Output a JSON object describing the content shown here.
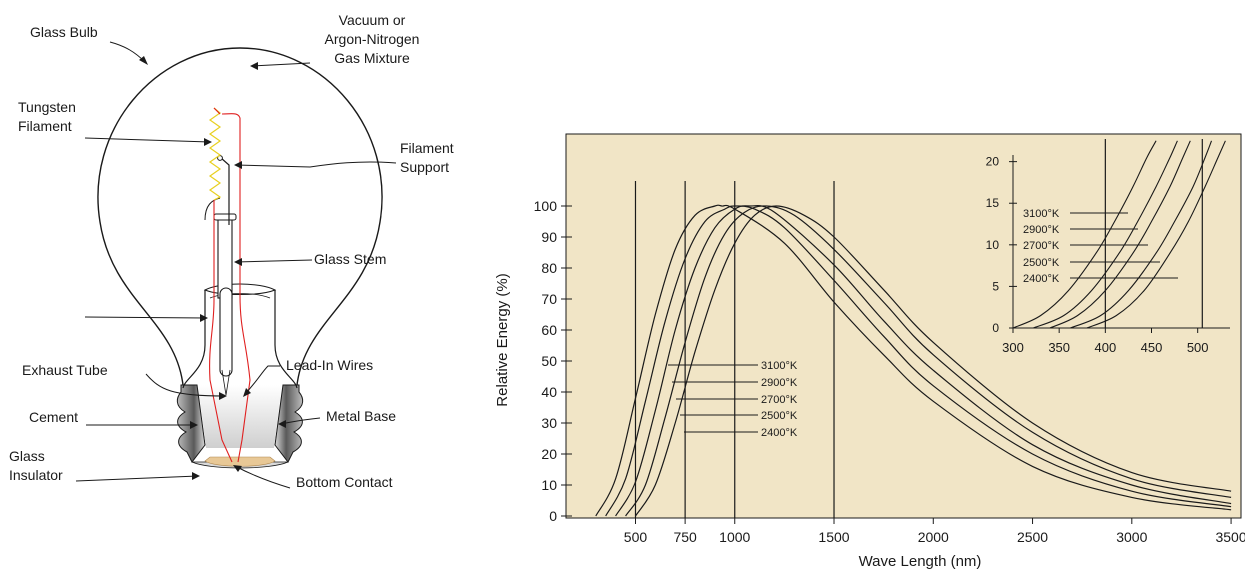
{
  "diagram": {
    "labels": {
      "glass_bulb": "Glass Bulb",
      "gas_line1": "Vacuum or",
      "gas_line2": "Argon-Nitrogen",
      "gas_line3": "Gas Mixture",
      "filament_line1": "Tungsten",
      "filament_line2": "Filament",
      "support_line1": "Filament",
      "support_line2": "Support",
      "glass_stem": "Glass Stem",
      "lead_in": "Lead-In Wires",
      "exhaust_tube": "Exhaust Tube",
      "cement": "Cement",
      "metal_base": "Metal Base",
      "insulator_line1": "Glass",
      "insulator_line2": "Insulator",
      "bottom_contact": "Bottom Contact"
    },
    "colors": {
      "lead_wire": "#e02020",
      "filament": "#e8d020",
      "contact": "#e8c896"
    }
  },
  "chart_data": [
    {
      "type": "line",
      "xlabel": "Wave Length (nm)",
      "ylabel": "Relative Energy (%)",
      "xlim": [
        150,
        3550
      ],
      "ylim": [
        0,
        116
      ],
      "x_ticks": [
        500,
        750,
        1000,
        1500,
        2000,
        2500,
        3000,
        3500
      ],
      "y_ticks": [
        0,
        10,
        20,
        30,
        40,
        50,
        60,
        70,
        80,
        90,
        100
      ],
      "vertical_lines": [
        500,
        750,
        1000,
        1500
      ],
      "background": "#f1e5c6",
      "series": [
        {
          "name": "3100°K",
          "peak": 935,
          "x": [
            300,
            400,
            500,
            600,
            700,
            800,
            900,
            935,
            1000,
            1250,
            1500,
            1750,
            2000,
            2500,
            3000,
            3500
          ],
          "values": [
            0,
            12,
            38,
            65,
            86,
            97,
            100,
            100,
            99,
            88,
            69,
            52,
            37,
            16,
            6,
            2
          ]
        },
        {
          "name": "2900°K",
          "peak": 1000,
          "x": [
            350,
            450,
            550,
            650,
            750,
            850,
            950,
            1000,
            1100,
            1250,
            1500,
            1750,
            2000,
            2500,
            3000,
            3500
          ],
          "values": [
            0,
            12,
            37,
            63,
            83,
            95,
            99,
            100,
            99,
            93,
            76,
            58,
            42,
            20,
            8,
            3
          ]
        },
        {
          "name": "2700°K",
          "peak": 1075,
          "x": [
            400,
            500,
            600,
            700,
            800,
            900,
            1000,
            1075,
            1200,
            1500,
            1750,
            2000,
            2500,
            3000,
            3500
          ],
          "values": [
            0,
            11,
            34,
            60,
            80,
            93,
            99,
            100,
            98,
            81,
            63,
            47,
            23,
            10,
            4
          ]
        },
        {
          "name": "2500°K",
          "peak": 1160,
          "x": [
            450,
            550,
            650,
            750,
            850,
            950,
            1050,
            1160,
            1300,
            1500,
            1750,
            2000,
            2500,
            3000,
            3500
          ],
          "values": [
            0,
            10,
            32,
            56,
            77,
            91,
            98,
            100,
            97,
            86,
            69,
            52,
            27,
            12,
            6
          ]
        },
        {
          "name": "2400°K",
          "peak": 1210,
          "x": [
            500,
            600,
            700,
            800,
            900,
            1000,
            1100,
            1210,
            1350,
            1500,
            1750,
            2000,
            2500,
            3000,
            3500
          ],
          "values": [
            0,
            10,
            30,
            53,
            73,
            88,
            97,
            100,
            97,
            90,
            73,
            56,
            30,
            14,
            8
          ]
        }
      ]
    },
    {
      "type": "line",
      "inset": true,
      "xlim": [
        300,
        535
      ],
      "ylim": [
        0,
        22
      ],
      "x_ticks": [
        300,
        350,
        400,
        450,
        500
      ],
      "y_ticks": [
        0,
        5,
        10,
        15,
        20
      ],
      "vertical_lines": [
        400,
        505
      ],
      "series": [
        {
          "name": "3100°K",
          "x": [
            300,
            330,
            360,
            390,
            410,
            430,
            445,
            455
          ],
          "values": [
            0,
            1.5,
            4.5,
            9,
            12.8,
            17,
            20.5,
            22.5
          ]
        },
        {
          "name": "2900°K",
          "x": [
            322,
            355,
            385,
            415,
            435,
            455,
            470,
            478
          ],
          "values": [
            0,
            1.5,
            4.5,
            9,
            12.8,
            17,
            20.5,
            22.5
          ]
        },
        {
          "name": "2700°K",
          "x": [
            340,
            370,
            400,
            430,
            450,
            470,
            484,
            492
          ],
          "values": [
            0,
            1.5,
            4.5,
            9,
            12.8,
            17,
            20.5,
            22.5
          ]
        },
        {
          "name": "2500°K",
          "x": [
            362,
            395,
            425,
            455,
            475,
            495,
            508,
            515
          ],
          "values": [
            0,
            1.5,
            4.5,
            9,
            12.8,
            17,
            20.5,
            22.5
          ]
        },
        {
          "name": "2400°K",
          "x": [
            380,
            412,
            442,
            470,
            490,
            508,
            522,
            530
          ],
          "values": [
            0,
            1.5,
            4.5,
            9,
            12.8,
            17,
            20.5,
            22.5
          ]
        }
      ]
    }
  ]
}
